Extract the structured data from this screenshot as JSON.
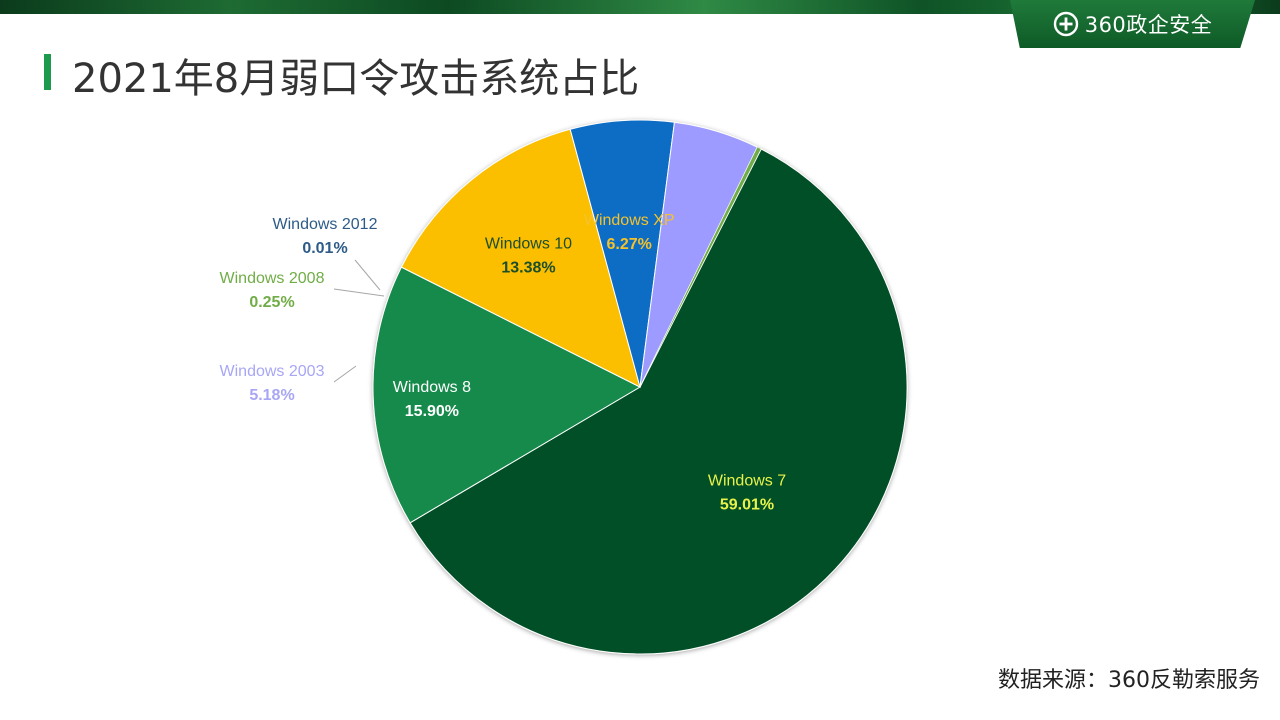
{
  "header": {
    "brand": "360政企安全",
    "title": "2021年8月弱口令攻击系统占比"
  },
  "footer": {
    "source": "数据来源：360反勒索服务"
  },
  "chart_data": {
    "type": "pie",
    "title": "2021年8月弱口令攻击系统占比",
    "slices": [
      {
        "name": "Windows 7",
        "value": 59.01,
        "label": "59.01%",
        "color": "#064f28",
        "label_color": "#e8f24a"
      },
      {
        "name": "Windows 8",
        "value": 15.9,
        "label": "15.90%",
        "color": "#138a4c",
        "label_color": "#ffffff"
      },
      {
        "name": "Windows 10",
        "value": 13.38,
        "label": "13.38%",
        "color": "#fbbf00",
        "label_color": "#1d4e2a"
      },
      {
        "name": "Windows XP",
        "value": 6.27,
        "label": "6.27%",
        "color": "#0a6cc4",
        "label_color": "#f5c22b"
      },
      {
        "name": "Windows 2003",
        "value": 5.18,
        "label": "5.18%",
        "color": "#9d9bff",
        "label_color": "#a8a6f5"
      },
      {
        "name": "Windows 2008",
        "value": 0.25,
        "label": "0.25%",
        "color": "#71ad47",
        "label_color": "#71ad47"
      },
      {
        "name": "Windows 2012",
        "value": 0.01,
        "label": "0.01%",
        "color": "#2d5b88",
        "label_color": "#2d5b88"
      }
    ]
  }
}
